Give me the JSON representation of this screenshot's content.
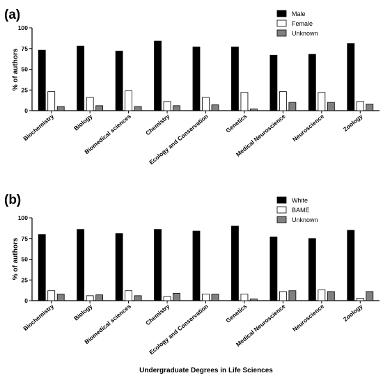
{
  "chart_data": [
    {
      "panel_label": "(a)",
      "type": "bar",
      "ylabel": "% of authors",
      "ylim": [
        0,
        100
      ],
      "yticks": [
        0,
        25,
        50,
        75,
        100
      ],
      "categories": [
        "Biochemistry",
        "Biology",
        "Biomedical sciences",
        "Chemistry",
        "Ecology and Conservation",
        "Genetics",
        "Medical Neuroscience",
        "Neuroscience",
        "Zoology"
      ],
      "legend_position": "top-right",
      "series": [
        {
          "name": "Male",
          "color": "#000000",
          "values": [
            73,
            78,
            72,
            84,
            77,
            77,
            67,
            68,
            81
          ]
        },
        {
          "name": "Female",
          "color": "#ffffff",
          "values": [
            23,
            16,
            24,
            11,
            16,
            22,
            23,
            22,
            11
          ]
        },
        {
          "name": "Unknown",
          "color": "#808080",
          "values": [
            5,
            6,
            5,
            6,
            7,
            2,
            10,
            10,
            8
          ]
        }
      ]
    },
    {
      "panel_label": "(b)",
      "type": "bar",
      "ylabel": "% of authors",
      "xlabel": "Undergraduate Degrees in Life Sciences",
      "ylim": [
        0,
        100
      ],
      "yticks": [
        0,
        25,
        50,
        75,
        100
      ],
      "categories": [
        "Biochemistry",
        "Biology",
        "Biomedical sciences",
        "Chemistry",
        "Ecology and Conservation",
        "Genetics",
        "Medical Neuroscience",
        "Neuroscience",
        "Zoology"
      ],
      "legend_position": "top-right",
      "series": [
        {
          "name": "White",
          "color": "#000000",
          "values": [
            80,
            86,
            81,
            86,
            84,
            90,
            77,
            75,
            85
          ]
        },
        {
          "name": "BAME",
          "color": "#ffffff",
          "values": [
            12,
            6,
            12,
            5,
            8,
            8,
            11,
            13,
            3
          ]
        },
        {
          "name": "Unknown",
          "color": "#808080",
          "values": [
            8,
            7,
            6,
            9,
            8,
            2,
            12,
            11,
            11
          ]
        }
      ]
    }
  ]
}
